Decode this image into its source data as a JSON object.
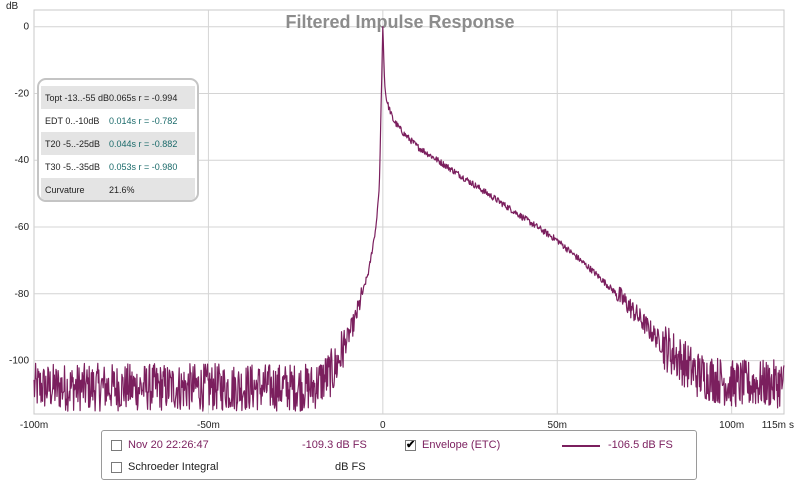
{
  "chart_data": {
    "type": "line",
    "title": "Filtered Impulse Response",
    "ylabel": "dB",
    "xunit": "s",
    "xlim": [
      -0.1,
      0.115
    ],
    "ylim": [
      -116,
      5
    ],
    "x_ticks": [
      {
        "value": -0.1,
        "label": "-100m"
      },
      {
        "value": -0.05,
        "label": "-50m"
      },
      {
        "value": 0,
        "label": "0"
      },
      {
        "value": 0.05,
        "label": "50m"
      },
      {
        "value": 0.1,
        "label": "100m"
      },
      {
        "value": 0.115,
        "label": "115m"
      }
    ],
    "y_ticks": [
      0,
      -20,
      -40,
      -60,
      -80,
      -100
    ],
    "grid": true,
    "series": [
      {
        "name": "Envelope (ETC)",
        "color": "#7b1f5e",
        "x": [
          -0.1,
          -0.05,
          -0.02,
          -0.014,
          -0.008,
          -0.004,
          -0.002,
          -0.001,
          0,
          0.0005,
          0.001,
          0.003,
          0.006,
          0.01,
          0.02,
          0.03,
          0.04,
          0.05,
          0.06,
          0.07,
          0.08,
          0.09,
          0.1,
          0.115
        ],
        "y": [
          -108,
          -108,
          -108,
          -103,
          -88,
          -73,
          -60,
          -48,
          0,
          -17,
          -22,
          -28,
          -32,
          -36,
          -43,
          -50,
          -57,
          -64,
          -73,
          -83,
          -95,
          -104,
          -107,
          -107
        ],
        "noise_floor": -106.5
      }
    ],
    "legend_placement": "bottom"
  },
  "stats": [
    {
      "label": "Topt -13..-55 dB",
      "t": "0.065s",
      "r": "r = -0.994"
    },
    {
      "label": "EDT 0..-10dB",
      "t": "0.014s",
      "r": "r = -0.782"
    },
    {
      "label": "T20 -5..-25dB",
      "t": "0.044s",
      "r": "r = -0.882"
    },
    {
      "label": "T30 -5..-35dB",
      "t": "0.053s",
      "r": "r = -0.980"
    },
    {
      "label": "Curvature",
      "t": "21.6%",
      "r": ""
    }
  ],
  "legend": {
    "item1_label": "Nov 20 22:26:47",
    "item1_value": "-109.3 dB FS",
    "item1_checked": false,
    "item2_label": "Envelope (ETC)",
    "item2_value": "-106.5 dB FS",
    "item2_checked": true,
    "item3_label": "Schroeder Integral",
    "item3_value": "dB FS",
    "item3_checked": false,
    "check_glyph": "✔"
  },
  "colors": {
    "curve": "#7b1f5e",
    "grid": "#d4d4d4",
    "title": "#8c8c8c",
    "legend_item1": "#7b1f5e"
  }
}
